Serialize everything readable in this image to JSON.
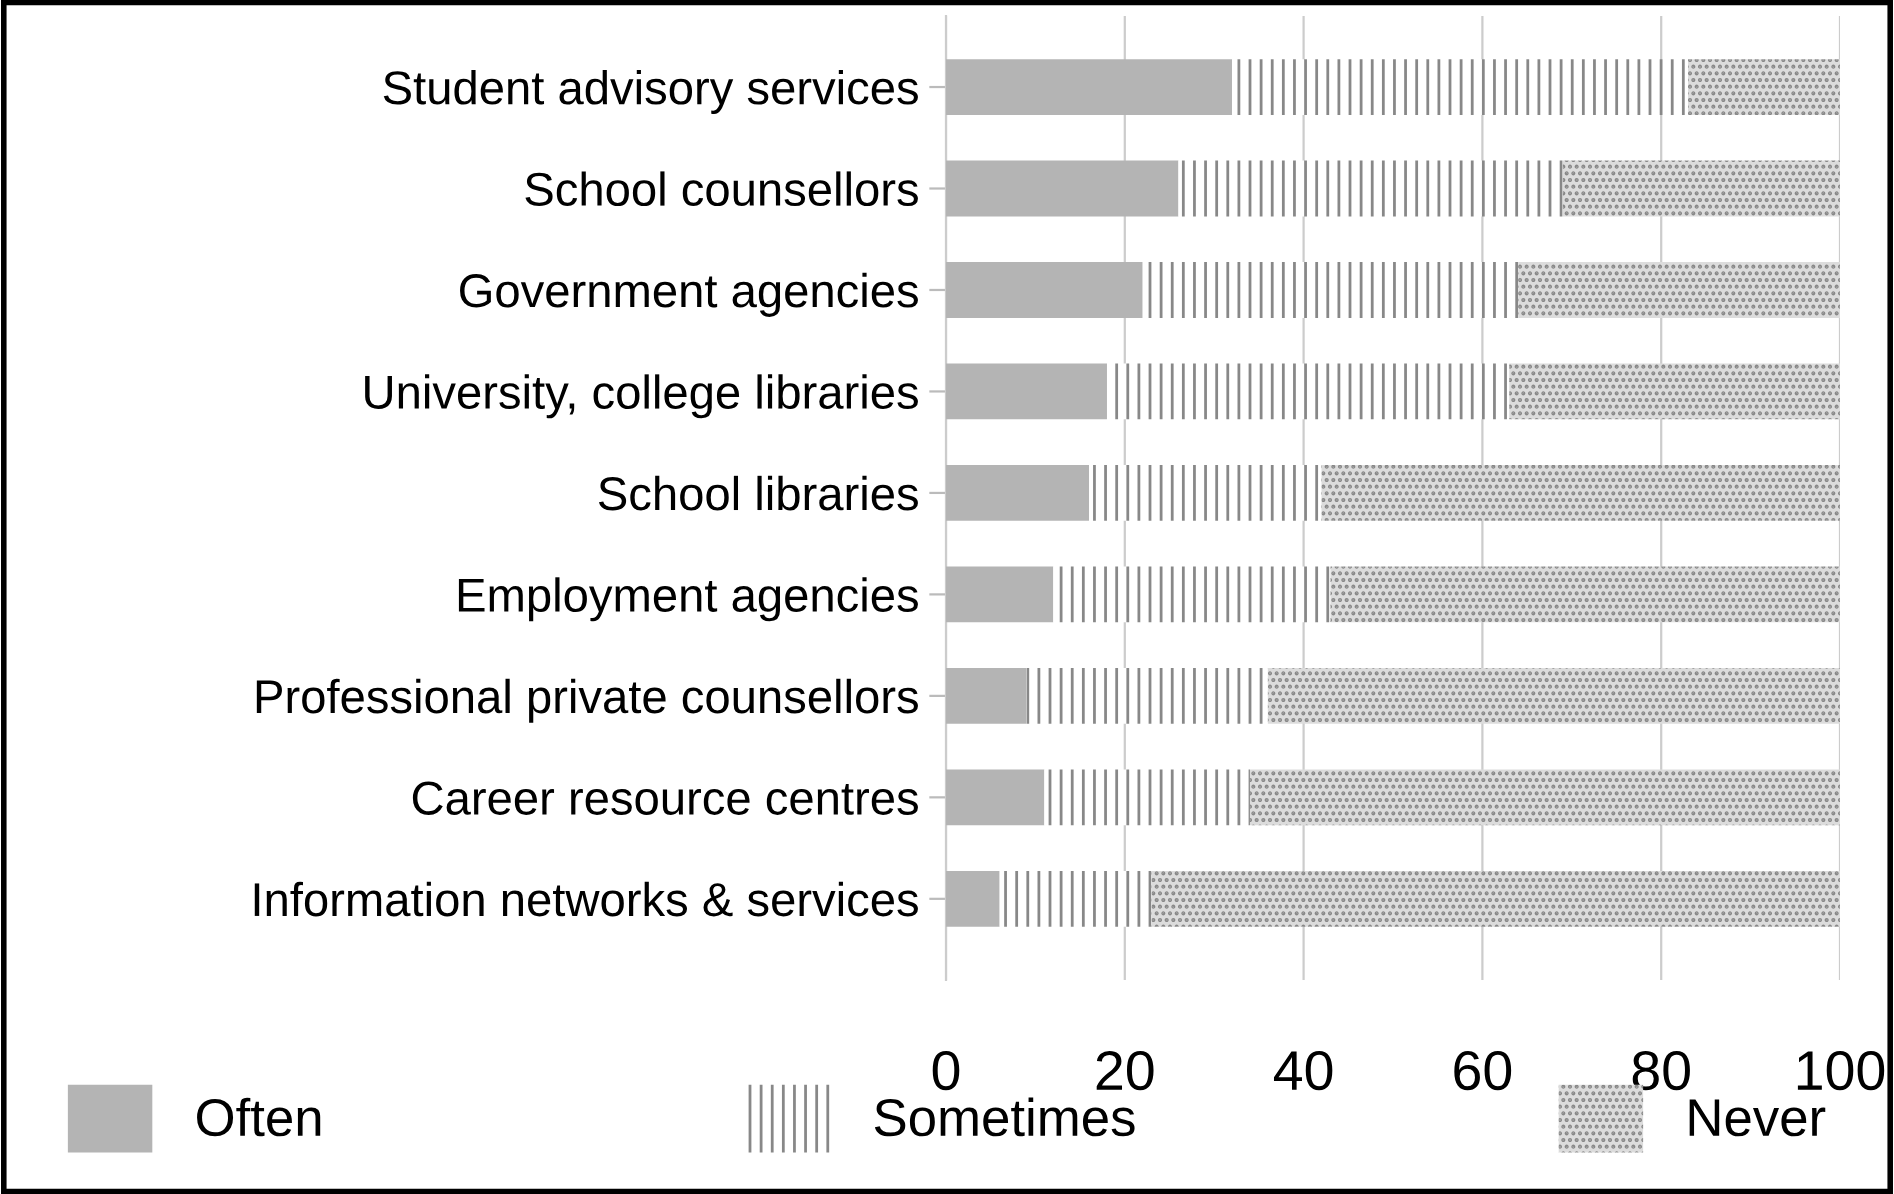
{
  "chart_data": {
    "type": "bar",
    "orientation": "horizontal",
    "stacked": true,
    "categories": [
      "Student advisory services",
      "School counsellors",
      "Government agencies",
      "University, college libraries",
      "School libraries",
      "Employment agencies",
      "Professional private counsellors",
      "Career resource centres",
      "Information networks & services"
    ],
    "series": [
      {
        "name": "Often",
        "color": "#b4b4b4",
        "values": [
          32,
          26,
          22,
          18,
          16,
          12,
          9,
          11,
          6
        ]
      },
      {
        "name": "Sometimes",
        "color": "#ffffff",
        "values": [
          51,
          43,
          42,
          45,
          26,
          31,
          27,
          23,
          17
        ]
      },
      {
        "name": "Never",
        "color": "#dcdcdc",
        "values": [
          17,
          31,
          36,
          37,
          58,
          57,
          64,
          66,
          77
        ]
      }
    ],
    "xlim": [
      0,
      100
    ],
    "xticks": [
      0,
      20,
      40,
      60,
      80,
      100
    ],
    "grid": "x",
    "legend": "bottom"
  }
}
